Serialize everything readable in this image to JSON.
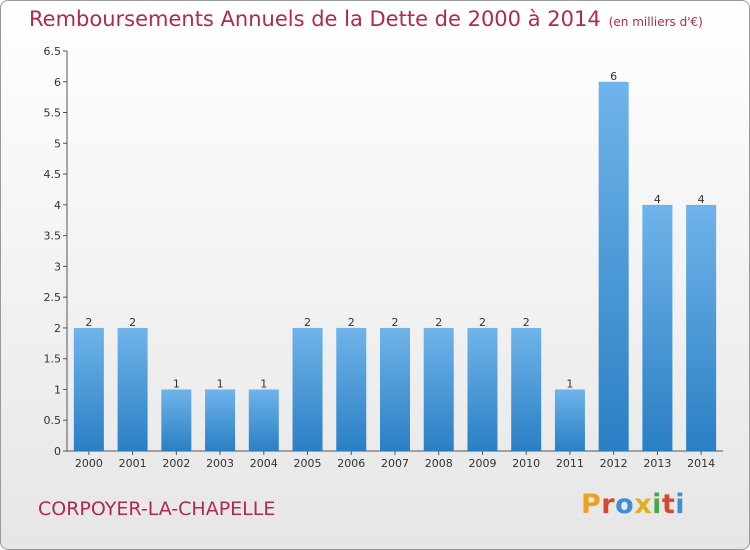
{
  "title": "Remboursements Annuels de la Dette de 2000 à 2014",
  "unit": "(en milliers d'€)",
  "commune": "CORPOYER-LA-CHAPELLE",
  "logo": "Proxiti",
  "colors": {
    "title": "#b22a4b",
    "bar_light": "#6fb4ea",
    "bar_dark": "#2a7fc4",
    "logo": [
      "#f0a020",
      "#d84830",
      "#3d8fd6",
      "#e0b020",
      "#4aa84a",
      "#d84830",
      "#3d8fd6"
    ]
  },
  "chart_data": {
    "type": "bar",
    "title": "Remboursements Annuels de la Dette de 2000 à 2014",
    "xlabel": "",
    "ylabel": "",
    "ylim": [
      0,
      6.5
    ],
    "yticks": [
      "0",
      "0.5",
      "1",
      "1.5",
      "2",
      "2.5",
      "3",
      "3.5",
      "4",
      "4.5",
      "5",
      "5.5",
      "6",
      "6.5"
    ],
    "grid": false,
    "categories": [
      "2000",
      "2001",
      "2002",
      "2003",
      "2004",
      "2005",
      "2006",
      "2007",
      "2008",
      "2009",
      "2010",
      "2011",
      "2012",
      "2013",
      "2014"
    ],
    "values": [
      2,
      2,
      1,
      1,
      1,
      2,
      2,
      2,
      2,
      2,
      2,
      1,
      6,
      4,
      4
    ],
    "data_labels": [
      "2",
      "2",
      "1",
      "1",
      "1",
      "2",
      "2",
      "2",
      "2",
      "2",
      "2",
      "1",
      "6",
      "4",
      "4"
    ]
  }
}
